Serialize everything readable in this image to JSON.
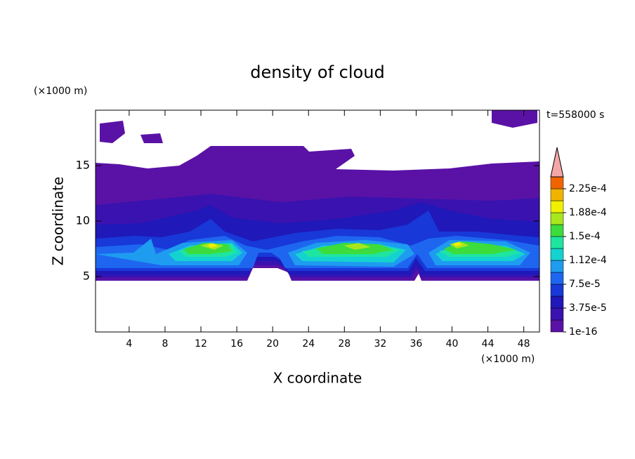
{
  "chart_data": {
    "type": "contour",
    "title": "density of cloud",
    "xlabel": "X coordinate",
    "ylabel": "Z coordinate",
    "x_unit": "(×1000 m)",
    "y_unit": "(×1000 m)",
    "time_label": "t=558000 s",
    "xlim": [
      0.25,
      49.75
    ],
    "ylim": [
      0,
      20
    ],
    "xticks": [
      4,
      8,
      12,
      16,
      20,
      24,
      28,
      32,
      36,
      40,
      44,
      48
    ],
    "yticks": [
      5,
      10,
      15
    ],
    "levels": [
      {
        "value": 1e-16,
        "label": "1e-16"
      },
      1.875e-05,
      {
        "value": 3.75e-05,
        "label": "3.75e-5"
      },
      5.625e-05,
      {
        "value": 7.5e-05,
        "label": "7.5e-5"
      },
      9.375e-05,
      {
        "value": 0.0001125,
        "label": "1.12e-4"
      },
      0.00013125,
      {
        "value": 0.00015,
        "label": "1.5e-4"
      },
      0.00016875,
      {
        "value": 0.0001875,
        "label": "1.88e-4"
      },
      0.00020625,
      {
        "value": 0.000225,
        "label": "2.25e-4"
      },
      0.00024375
    ],
    "colors": [
      "#5a12a6",
      "#3a12b0",
      "#2018b8",
      "#1838d8",
      "#1e66f0",
      "#1e9cf0",
      "#14d2d0",
      "#1ee6a0",
      "#3cdc3c",
      "#a8e61e",
      "#f0f000",
      "#f0b400",
      "#f06400"
    ],
    "extend_color": "#f4a6a6"
  }
}
